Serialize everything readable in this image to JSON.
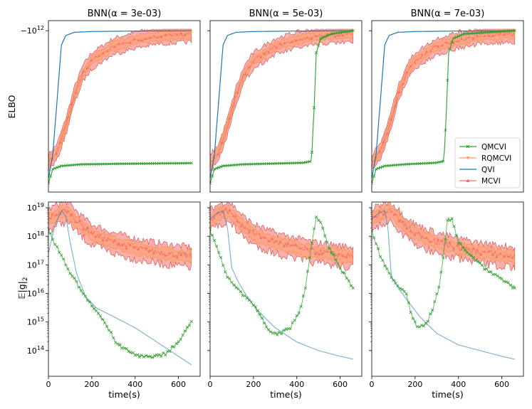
{
  "chart_data": {
    "type": "line",
    "layout": "2 rows x 3 columns of subplots",
    "columns": [
      {
        "title": "BNN(α = 3e-03)",
        "qmcvi_jump_time": null
      },
      {
        "title": "BNN(α = 5e-03)",
        "qmcvi_jump_time": 480
      },
      {
        "title": "BNN(α = 7e-03)",
        "qmcvi_jump_time": 345
      }
    ],
    "xlabel": "time(s)",
    "xlim": [
      0,
      700
    ],
    "xticks": [
      0,
      200,
      400,
      600
    ],
    "xtick_labels": [
      "0",
      "200",
      "400",
      "600"
    ],
    "top_row": {
      "ylabel": "ELBO",
      "ytick_label": "−10^12",
      "ytick_text": {
        "base": "−10",
        "exp": "12"
      },
      "note": "ELBO on symmetric log scale; values normalised 0 (bottom) to 1 (top)",
      "series": {
        "QVI": [
          [
            0,
            0.05
          ],
          [
            20,
            0.2
          ],
          [
            40,
            0.55
          ],
          [
            60,
            0.9
          ],
          [
            80,
            0.96
          ],
          [
            120,
            0.98
          ],
          [
            200,
            0.985
          ],
          [
            400,
            0.988
          ],
          [
            660,
            0.99
          ]
        ],
        "MCVI_band": {
          "mean": [
            [
              0,
              0.15
            ],
            [
              40,
              0.22
            ],
            [
              80,
              0.38
            ],
            [
              120,
              0.58
            ],
            [
              160,
              0.72
            ],
            [
              200,
              0.8
            ],
            [
              300,
              0.89
            ],
            [
              400,
              0.93
            ],
            [
              500,
              0.955
            ],
            [
              660,
              0.97
            ]
          ],
          "spread": 0.06
        },
        "QMCVI_base": [
          [
            0,
            0.02
          ],
          [
            20,
            0.11
          ],
          [
            60,
            0.13
          ],
          [
            150,
            0.14
          ],
          [
            300,
            0.143
          ],
          [
            660,
            0.148
          ]
        ]
      }
    },
    "bottom_row": {
      "ylabel": "E|g|₂",
      "ylabel_text": {
        "main": "𝔼|g|",
        "sub": "2"
      },
      "yscale": "log",
      "ylim_exp": [
        13.1,
        19.2
      ],
      "yticks": [
        {
          "value": "1e14",
          "base": "10",
          "exp": "14"
        },
        {
          "value": "1e15",
          "base": "10",
          "exp": "15"
        },
        {
          "value": "1e16",
          "base": "10",
          "exp": "16"
        },
        {
          "value": "1e17",
          "base": "10",
          "exp": "17"
        },
        {
          "value": "1e18",
          "base": "10",
          "exp": "18"
        },
        {
          "value": "1e19",
          "base": "10",
          "exp": "19"
        }
      ],
      "series_log10": {
        "QVI": [
          [
            [
              0,
              17.4
            ],
            [
              30,
              18.4
            ],
            [
              60,
              18.9
            ],
            [
              80,
              18.7
            ],
            [
              100,
              17.8
            ],
            [
              130,
              16.7
            ],
            [
              170,
              15.9
            ],
            [
              220,
              15.5
            ],
            [
              400,
              14.8
            ],
            [
              500,
              14.3
            ],
            [
              600,
              13.8
            ],
            [
              660,
              13.5
            ]
          ],
          [
            [
              0,
              18.6
            ],
            [
              30,
              18.8
            ],
            [
              60,
              18.9
            ],
            [
              80,
              18.3
            ],
            [
              100,
              16.9
            ],
            [
              130,
              16.4
            ],
            [
              170,
              15.9
            ],
            [
              220,
              15.4
            ],
            [
              300,
              14.8
            ],
            [
              400,
              14.3
            ],
            [
              500,
              14.0
            ],
            [
              600,
              13.8
            ],
            [
              660,
              13.7
            ]
          ],
          [
            [
              0,
              18.6
            ],
            [
              30,
              18.8
            ],
            [
              60,
              18.9
            ],
            [
              75,
              18.3
            ],
            [
              90,
              16.6
            ],
            [
              130,
              16.1
            ],
            [
              170,
              15.7
            ],
            [
              220,
              15.2
            ],
            [
              300,
              14.6
            ],
            [
              400,
              14.2
            ],
            [
              500,
              14.0
            ],
            [
              600,
              13.8
            ],
            [
              660,
              13.7
            ]
          ]
        ],
        "QMCVI": [
          [
            [
              0,
              18.2
            ],
            [
              40,
              17.6
            ],
            [
              80,
              17.0
            ],
            [
              120,
              16.5
            ],
            [
              160,
              16.0
            ],
            [
              200,
              15.6
            ],
            [
              250,
              15.1
            ],
            [
              320,
              14.2
            ],
            [
              400,
              13.85
            ],
            [
              480,
              13.75
            ],
            [
              540,
              13.9
            ],
            [
              600,
              14.3
            ],
            [
              660,
              15.0
            ]
          ],
          [
            [
              0,
              18.2
            ],
            [
              40,
              17.4
            ],
            [
              80,
              16.6
            ],
            [
              120,
              16.2
            ],
            [
              160,
              15.9
            ],
            [
              200,
              15.6
            ],
            [
              240,
              15.1
            ],
            [
              280,
              14.6
            ],
            [
              320,
              14.6
            ],
            [
              370,
              14.8
            ],
            [
              410,
              15.3
            ],
            [
              440,
              16.2
            ],
            [
              470,
              17.8
            ],
            [
              490,
              18.7
            ],
            [
              510,
              18.5
            ],
            [
              550,
              17.6
            ],
            [
              600,
              16.9
            ],
            [
              660,
              16.2
            ]
          ],
          [
            [
              0,
              18.2
            ],
            [
              40,
              17.3
            ],
            [
              80,
              16.7
            ],
            [
              120,
              16.3
            ],
            [
              160,
              16.0
            ],
            [
              180,
              15.3
            ],
            [
              210,
              14.8
            ],
            [
              250,
              14.9
            ],
            [
              280,
              15.4
            ],
            [
              310,
              16.2
            ],
            [
              330,
              17.3
            ],
            [
              350,
              18.6
            ],
            [
              370,
              18.6
            ],
            [
              400,
              17.8
            ],
            [
              460,
              17.3
            ],
            [
              520,
              16.9
            ],
            [
              600,
              16.5
            ],
            [
              660,
              16.2
            ]
          ]
        ],
        "MCVI_mean": [
          [
            0,
            18.6
          ],
          [
            40,
            18.8
          ],
          [
            80,
            18.9
          ],
          [
            100,
            18.8
          ],
          [
            150,
            18.4
          ],
          [
            200,
            18.1
          ],
          [
            300,
            17.8
          ],
          [
            400,
            17.6
          ],
          [
            500,
            17.45
          ],
          [
            600,
            17.35
          ],
          [
            660,
            17.3
          ]
        ],
        "MCVI_spread": 0.5
      }
    },
    "legend": {
      "position": "top-right panel, lower-right",
      "entries": [
        {
          "label": "QMCVI",
          "color": "#2ca02c",
          "marker": "x"
        },
        {
          "label": "RQMCVI",
          "color": "#ff9f6e",
          "marker": "v"
        },
        {
          "label": "QVI",
          "color": "#1f77b4",
          "marker": "none"
        },
        {
          "label": "MCVI",
          "color": "#f0706a",
          "marker": "^"
        }
      ]
    }
  }
}
